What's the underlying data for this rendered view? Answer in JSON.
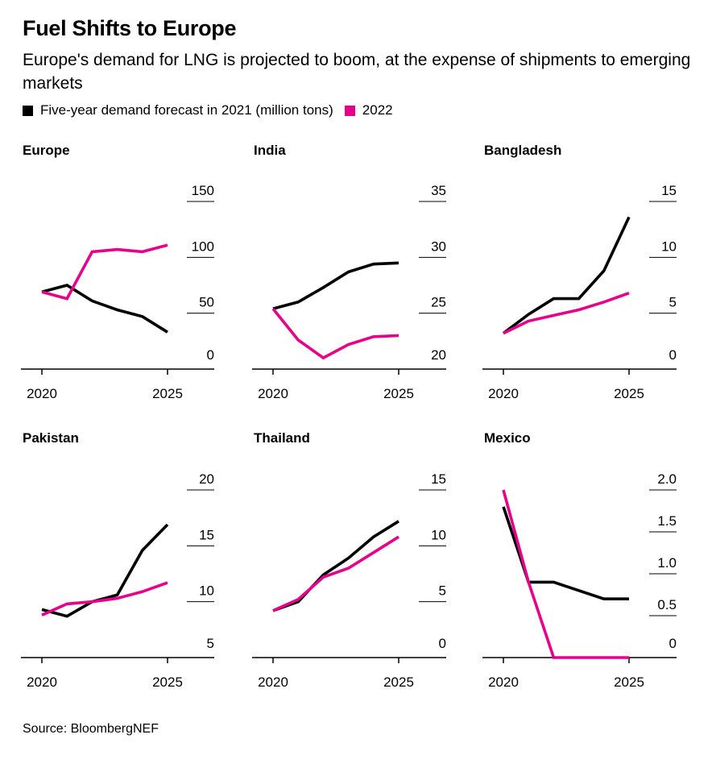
{
  "header": {
    "title": "Fuel Shifts to Europe",
    "subtitle": "Europe's demand for LNG is projected to boom, at the expense of shipments to emerging markets"
  },
  "legend": {
    "items": [
      {
        "label": "Five-year demand forecast in 2021 (million tons)",
        "color": "#000000"
      },
      {
        "label": "2022",
        "color": "#e6008a"
      }
    ]
  },
  "footer": {
    "source": "Source: BloombergNEF"
  },
  "colors": {
    "series_2021": "#000000",
    "series_2022": "#e6008a"
  },
  "chart_data": [
    {
      "type": "line",
      "title": "Europe",
      "x": [
        2020,
        2021,
        2022,
        2023,
        2024,
        2025
      ],
      "xticks": [
        "2020",
        "2025"
      ],
      "ylim": [
        0,
        150
      ],
      "yticks": [
        "0",
        "50",
        "100",
        "150"
      ],
      "series": [
        {
          "name": "Five-year demand forecast in 2021 (million tons)",
          "values": [
            69,
            75,
            61,
            53,
            47,
            33
          ]
        },
        {
          "name": "2022",
          "values": [
            69,
            63,
            105,
            107,
            105,
            111
          ]
        }
      ]
    },
    {
      "type": "line",
      "title": "India",
      "x": [
        2020,
        2021,
        2022,
        2023,
        2024,
        2025
      ],
      "xticks": [
        "2020",
        "2025"
      ],
      "ylim": [
        20,
        35
      ],
      "yticks": [
        "20",
        "25",
        "30",
        "35"
      ],
      "series": [
        {
          "name": "Five-year demand forecast in 2021 (million tons)",
          "values": [
            25.4,
            26.0,
            27.3,
            28.7,
            29.4,
            29.5
          ]
        },
        {
          "name": "2022",
          "values": [
            25.4,
            22.6,
            21.0,
            22.2,
            22.9,
            23.0
          ]
        }
      ]
    },
    {
      "type": "line",
      "title": "Bangladesh",
      "x": [
        2020,
        2021,
        2022,
        2023,
        2024,
        2025
      ],
      "xticks": [
        "2020",
        "2025"
      ],
      "ylim": [
        0,
        15
      ],
      "yticks": [
        "0",
        "5",
        "10",
        "15"
      ],
      "series": [
        {
          "name": "Five-year demand forecast in 2021 (million tons)",
          "values": [
            3.2,
            4.9,
            6.3,
            6.3,
            8.8,
            13.6
          ]
        },
        {
          "name": "2022",
          "values": [
            3.2,
            4.3,
            4.8,
            5.3,
            6.0,
            6.8
          ]
        }
      ]
    },
    {
      "type": "line",
      "title": "Pakistan",
      "x": [
        2020,
        2021,
        2022,
        2023,
        2024,
        2025
      ],
      "xticks": [
        "2020",
        "2025"
      ],
      "ylim": [
        5,
        20
      ],
      "yticks": [
        "5",
        "10",
        "15",
        "20"
      ],
      "series": [
        {
          "name": "Five-year demand forecast in 2021 (million tons)",
          "values": [
            9.3,
            8.7,
            10.0,
            10.6,
            14.6,
            16.9
          ]
        },
        {
          "name": "2022",
          "values": [
            8.8,
            9.8,
            10.0,
            10.3,
            10.9,
            11.7
          ]
        }
      ]
    },
    {
      "type": "line",
      "title": "Thailand",
      "x": [
        2020,
        2021,
        2022,
        2023,
        2024,
        2025
      ],
      "xticks": [
        "2020",
        "2025"
      ],
      "ylim": [
        0,
        15
      ],
      "yticks": [
        "0",
        "5",
        "10",
        "15"
      ],
      "series": [
        {
          "name": "Five-year demand forecast in 2021 (million tons)",
          "values": [
            4.2,
            5.0,
            7.4,
            8.9,
            10.8,
            12.2
          ]
        },
        {
          "name": "2022",
          "values": [
            4.2,
            5.2,
            7.2,
            8.0,
            9.4,
            10.8
          ]
        }
      ]
    },
    {
      "type": "line",
      "title": "Mexico",
      "x": [
        2020,
        2021,
        2022,
        2023,
        2024,
        2025
      ],
      "xticks": [
        "2020",
        "2025"
      ],
      "ylim": [
        0,
        2.0
      ],
      "yticks": [
        "0",
        "0.5",
        "1.0",
        "1.5",
        "2.0"
      ],
      "series": [
        {
          "name": "Five-year demand forecast in 2021 (million tons)",
          "values": [
            1.8,
            0.9,
            0.9,
            0.8,
            0.7,
            0.7
          ]
        },
        {
          "name": "2022",
          "values": [
            2.0,
            0.9,
            0.0,
            0.0,
            0.0,
            0.0
          ]
        }
      ]
    }
  ]
}
